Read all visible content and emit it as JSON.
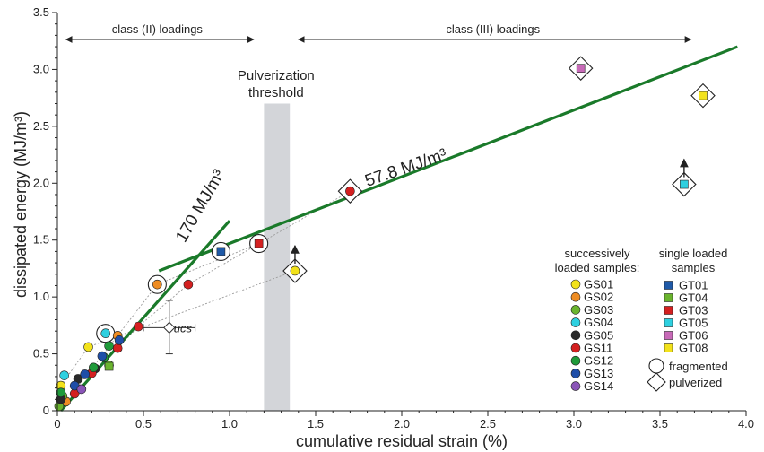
{
  "chart_data": {
    "type": "scatter",
    "xlabel": "cumulative residual strain (%)",
    "ylabel": "dissipated energy (MJ/m³)",
    "xlim": [
      0,
      4.0
    ],
    "ylim": [
      0,
      3.5
    ],
    "xticks": [
      "0",
      "0.5",
      "1.0",
      "1.5",
      "2.0",
      "2.5",
      "3.0",
      "3.5",
      "4.0"
    ],
    "yticks": [
      "0",
      "0.5",
      "1.0",
      "1.5",
      "2.0",
      "2.5",
      "3.0",
      "3.5"
    ],
    "annotations": {
      "class2": "class (II) loadings",
      "class3": "class (III) loadings",
      "threshold_line1": "Pulverization",
      "threshold_line2": "threshold",
      "slope1": "170 MJ/m³",
      "slope2": "57.8 MJ/m³",
      "ucs": "ucs"
    },
    "pulverization_band": [
      1.2,
      1.35
    ],
    "trend_lines": [
      {
        "label": "170 MJ/m³",
        "x": [
          0.02,
          1.0
        ],
        "y": [
          0.0,
          1.67
        ]
      },
      {
        "label": "57.8 MJ/m³",
        "x": [
          0.59,
          3.95
        ],
        "y": [
          1.23,
          3.2
        ]
      }
    ],
    "successive_series": [
      {
        "name": "GS01",
        "color": "#f2e21b",
        "points": [
          [
            0.02,
            0.22
          ],
          [
            0.18,
            0.56
          ],
          [
            1.38,
            1.23
          ]
        ]
      },
      {
        "name": "GS02",
        "color": "#ee8c22",
        "points": [
          [
            0.05,
            0.08
          ],
          [
            0.35,
            0.66
          ],
          [
            0.58,
            1.11
          ]
        ]
      },
      {
        "name": "GS03",
        "color": "#6ab42e",
        "points": [
          [
            0.01,
            0.04
          ],
          [
            0.03,
            0.13
          ],
          [
            0.3,
            0.4
          ]
        ]
      },
      {
        "name": "GS04",
        "color": "#2ed0e0",
        "points": [
          [
            0.04,
            0.31
          ],
          [
            0.28,
            0.68
          ]
        ]
      },
      {
        "name": "GS05",
        "color": "#2a2a2a",
        "points": [
          [
            0.02,
            0.1
          ],
          [
            0.12,
            0.28
          ],
          [
            0.22,
            0.37
          ]
        ]
      },
      {
        "name": "GS11",
        "color": "#d42020",
        "points": [
          [
            0.1,
            0.15
          ],
          [
            0.2,
            0.33
          ],
          [
            0.35,
            0.55
          ],
          [
            0.47,
            0.74
          ],
          [
            0.76,
            1.11
          ],
          [
            1.7,
            1.93
          ]
        ]
      },
      {
        "name": "GS12",
        "color": "#1f9a3a",
        "points": [
          [
            0.02,
            0.16
          ],
          [
            0.21,
            0.38
          ],
          [
            0.3,
            0.57
          ],
          [
            0.27,
            0.47
          ]
        ]
      },
      {
        "name": "GS13",
        "color": "#1f4ea8",
        "points": [
          [
            0.1,
            0.22
          ],
          [
            0.16,
            0.32
          ],
          [
            0.26,
            0.48
          ],
          [
            0.36,
            0.62
          ]
        ]
      },
      {
        "name": "GS14",
        "color": "#8a55b8",
        "points": [
          [
            0.14,
            0.19
          ]
        ]
      }
    ],
    "single_series": [
      {
        "name": "GT01",
        "color": "#1f5aa8",
        "points": [
          [
            0.95,
            1.4
          ]
        ]
      },
      {
        "name": "GT04",
        "color": "#6ab42e",
        "points": [
          [
            0.3,
            0.39
          ]
        ]
      },
      {
        "name": "GT03",
        "color": "#d42020",
        "points": [
          [
            1.17,
            1.47
          ]
        ]
      },
      {
        "name": "GT05",
        "color": "#2ed0e0",
        "points": [
          [
            3.64,
            1.99
          ]
        ]
      },
      {
        "name": "GT06",
        "color": "#c86ab8",
        "points": [
          [
            3.04,
            3.01
          ]
        ]
      },
      {
        "name": "GT08",
        "color": "#f2e21b",
        "points": [
          [
            3.75,
            2.77
          ]
        ]
      }
    ],
    "fragmented": [
      [
        0.58,
        1.11
      ],
      [
        0.28,
        0.68
      ],
      [
        0.95,
        1.4
      ],
      [
        1.17,
        1.47
      ]
    ],
    "pulverized": [
      [
        1.38,
        1.23
      ],
      [
        1.7,
        1.93
      ],
      [
        3.04,
        3.01
      ],
      [
        3.75,
        2.77
      ],
      [
        3.64,
        1.99
      ]
    ],
    "arrows_up": [
      [
        1.38,
        1.23
      ],
      [
        3.64,
        1.99
      ]
    ],
    "dotted_paths": [
      [
        [
          0.02,
          0.22
        ],
        [
          0.18,
          0.56
        ],
        [
          1.38,
          1.23
        ]
      ],
      [
        [
          0.05,
          0.08
        ],
        [
          0.35,
          0.66
        ],
        [
          0.58,
          1.11
        ],
        [
          1.17,
          1.47
        ]
      ],
      [
        [
          0.35,
          0.55
        ],
        [
          0.47,
          0.74
        ],
        [
          0.76,
          1.11
        ],
        [
          1.7,
          1.93
        ]
      ]
    ],
    "ucs_marker": {
      "x": 0.65,
      "y": 0.73,
      "xerr": [
        0.5,
        0.8
      ],
      "yerr": [
        0.5,
        0.97
      ]
    },
    "legend": {
      "successive_title_1": "successively",
      "successive_title_2": "loaded samples:",
      "single_title_1": "single loaded",
      "single_title_2": "samples",
      "fragmented_label": "fragmented",
      "pulverized_label": "pulverized"
    }
  }
}
